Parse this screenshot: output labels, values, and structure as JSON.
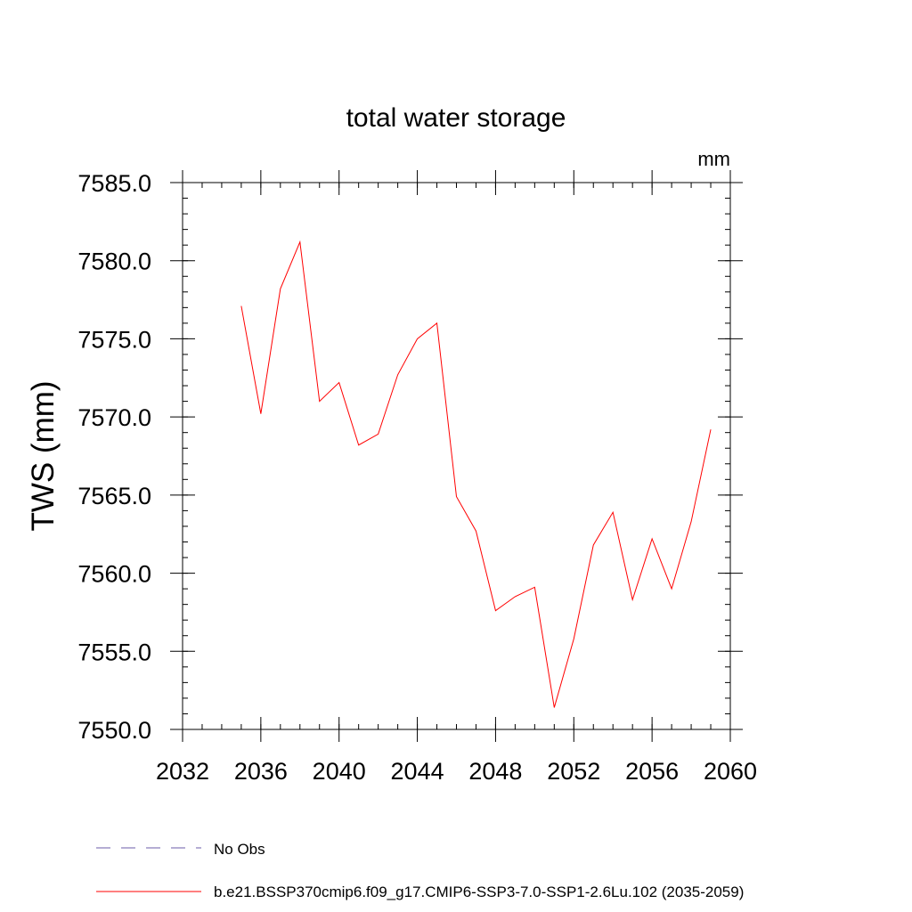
{
  "chart_data": {
    "type": "line",
    "title": "total water storage",
    "units": "mm",
    "ylabel": "TWS  (mm)",
    "xlabel": "",
    "xlim": [
      2032,
      2060
    ],
    "ylim": [
      7550.0,
      7585.0
    ],
    "x_ticks": [
      2032,
      2036,
      2040,
      2044,
      2048,
      2052,
      2056,
      2060
    ],
    "x_tick_labels": [
      "2032",
      "2036",
      "2040",
      "2044",
      "2048",
      "2052",
      "2056",
      "2060"
    ],
    "y_ticks": [
      7550,
      7555,
      7560,
      7565,
      7570,
      7575,
      7580,
      7585
    ],
    "y_tick_labels": [
      "7550.0",
      "7555.0",
      "7560.0",
      "7565.0",
      "7570.0",
      "7575.0",
      "7580.0",
      "7585.0"
    ],
    "grid": false,
    "series": [
      {
        "name": "b.e21.BSSP370cmip6.f09_g17.CMIP6-SSP3-7.0-SSP1-2.6Lu.102 (2035-2059)",
        "color": "#ff0000",
        "style": "solid",
        "x": [
          2035,
          2036,
          2037,
          2038,
          2039,
          2040,
          2041,
          2042,
          2043,
          2044,
          2045,
          2046,
          2047,
          2048,
          2049,
          2050,
          2051,
          2052,
          2053,
          2054,
          2055,
          2056,
          2057,
          2058,
          2059
        ],
        "values": [
          7577.1,
          7570.2,
          7578.2,
          7581.2,
          7571.0,
          7572.2,
          7568.2,
          7568.9,
          7572.7,
          7575.0,
          7576.0,
          7564.9,
          7562.7,
          7557.6,
          7558.5,
          7559.1,
          7551.4,
          7555.8,
          7561.8,
          7563.9,
          7558.3,
          7562.2,
          7559.0,
          7563.3,
          7569.2
        ]
      }
    ],
    "legend": {
      "placement": "bottom",
      "entries": [
        {
          "label": "No Obs",
          "color": "#6b5ba8",
          "style": "dashed"
        },
        {
          "label": "b.e21.BSSP370cmip6.f09_g17.CMIP6-SSP3-7.0-SSP1-2.6Lu.102 (2035-2059)",
          "color": "#ff0000",
          "style": "solid"
        }
      ]
    }
  }
}
